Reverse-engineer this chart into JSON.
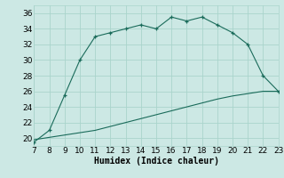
{
  "title": "",
  "xlabel": "Humidex (Indice chaleur)",
  "bg_color": "#cce8e4",
  "grid_color": "#aad4cc",
  "line_color": "#1a6b5a",
  "curve1_x": [
    7,
    8,
    9,
    10,
    11,
    12,
    13,
    14,
    15,
    16,
    17,
    18,
    19,
    20,
    21,
    22,
    23
  ],
  "curve1_y": [
    19.5,
    21.0,
    25.5,
    30.0,
    33.0,
    33.5,
    34.0,
    34.5,
    34.0,
    35.5,
    35.0,
    35.5,
    34.5,
    33.5,
    32.0,
    28.0,
    26.0
  ],
  "curve2_x": [
    7,
    8,
    9,
    10,
    11,
    12,
    13,
    14,
    15,
    16,
    17,
    18,
    19,
    20,
    21,
    22,
    23
  ],
  "curve2_y": [
    19.8,
    20.1,
    20.4,
    20.7,
    21.0,
    21.5,
    22.0,
    22.5,
    23.0,
    23.5,
    24.0,
    24.5,
    25.0,
    25.4,
    25.7,
    26.0,
    26.0
  ],
  "xlim": [
    7,
    23
  ],
  "ylim": [
    19,
    37
  ],
  "xticks": [
    7,
    8,
    9,
    10,
    11,
    12,
    13,
    14,
    15,
    16,
    17,
    18,
    19,
    20,
    21,
    22,
    23
  ],
  "yticks": [
    20,
    22,
    24,
    26,
    28,
    30,
    32,
    34,
    36
  ],
  "fontsize": 6.5,
  "xlabel_fontsize": 7.0
}
